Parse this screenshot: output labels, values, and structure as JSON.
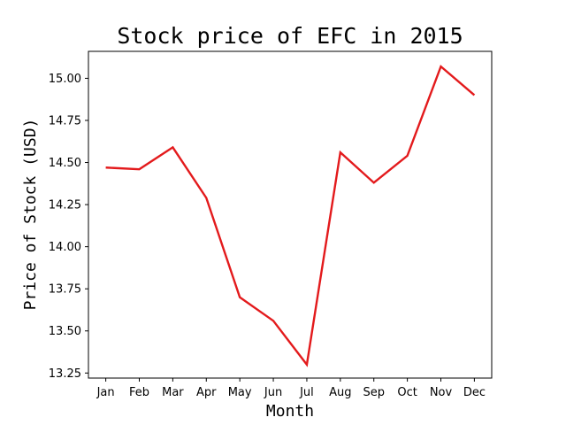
{
  "chart_data": {
    "type": "line",
    "title": "Stock price of EFC in 2015",
    "xlabel": "Month",
    "ylabel": "Price of Stock (USD)",
    "categories": [
      "Jan",
      "Feb",
      "Mar",
      "Apr",
      "May",
      "Jun",
      "Jul",
      "Aug",
      "Sep",
      "Oct",
      "Nov",
      "Dec"
    ],
    "series": [
      {
        "values": [
          14.47,
          14.46,
          14.59,
          14.29,
          13.7,
          13.56,
          13.3,
          14.56,
          14.38,
          14.54,
          15.07,
          14.9
        ],
        "color": "#e31a1c"
      }
    ],
    "ylim": [
      13.22,
      15.16
    ],
    "yticks": [
      "13.25",
      "13.50",
      "13.75",
      "14.00",
      "14.25",
      "14.50",
      "14.75",
      "15.00"
    ],
    "grid": false,
    "legend": "none"
  }
}
